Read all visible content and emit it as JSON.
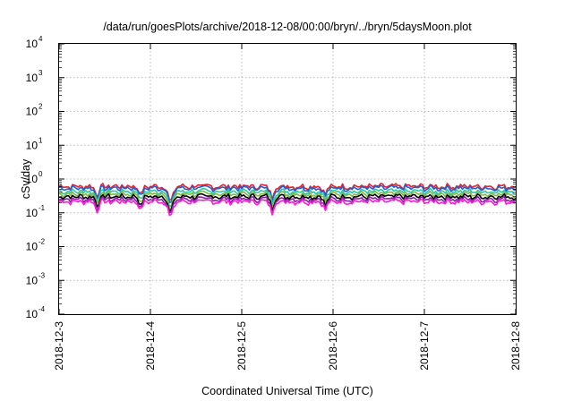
{
  "chart_data": {
    "type": "line",
    "title": "/data/run/goesPlots/archive/2018-12-08/00:00/bryn/../bryn/5daysMoon.plot",
    "xlabel": "Coordinated Universal Time (UTC)",
    "ylabel": "cSv/day",
    "yscale": "log",
    "ylim": [
      0.0001,
      10000
    ],
    "xlim": [
      "2018-12-3",
      "2018-12-8"
    ],
    "grid": true,
    "x_ticks": [
      "2018-12-3",
      "2018-12-4",
      "2018-12-5",
      "2018-12-6",
      "2018-12-7",
      "2018-12-8"
    ],
    "y_ticks": [
      {
        "base": "10",
        "exp": "4",
        "value": 10000
      },
      {
        "base": "10",
        "exp": "3",
        "value": 1000
      },
      {
        "base": "10",
        "exp": "2",
        "value": 100
      },
      {
        "base": "10",
        "exp": "1",
        "value": 10
      },
      {
        "base": "10",
        "exp": "0",
        "value": 1
      },
      {
        "base": "10",
        "exp": "-1",
        "value": 0.1
      },
      {
        "base": "10",
        "exp": "-2",
        "value": 0.01
      },
      {
        "base": "10",
        "exp": "-3",
        "value": 0.001
      },
      {
        "base": "10",
        "exp": "-4",
        "value": 0.0001
      }
    ],
    "dips": [
      {
        "x": "2018-12-3 10:00",
        "factor": 0.55
      },
      {
        "x": "2018-12-3 21:30",
        "factor": 0.55
      },
      {
        "x": "2018-12-4 05:00",
        "factor": 0.45
      },
      {
        "x": "2018-12-4 05:40",
        "factor": 0.5
      },
      {
        "x": "2018-12-5 08:00",
        "factor": 0.45
      },
      {
        "x": "2018-12-5 22:00",
        "factor": 0.55
      }
    ],
    "series": [
      {
        "color": "#e8202a",
        "base": 0.62
      },
      {
        "color": "#1f5fd6",
        "base": 0.55
      },
      {
        "color": "#2cc6a9",
        "base": 0.44
      },
      {
        "color": "#7fb842",
        "base": 0.37
      },
      {
        "color": "#000000",
        "base": 0.31
      },
      {
        "color": "#8b1fa8",
        "base": 0.26
      },
      {
        "color": "#ff1ad9",
        "base": 0.22
      }
    ]
  }
}
